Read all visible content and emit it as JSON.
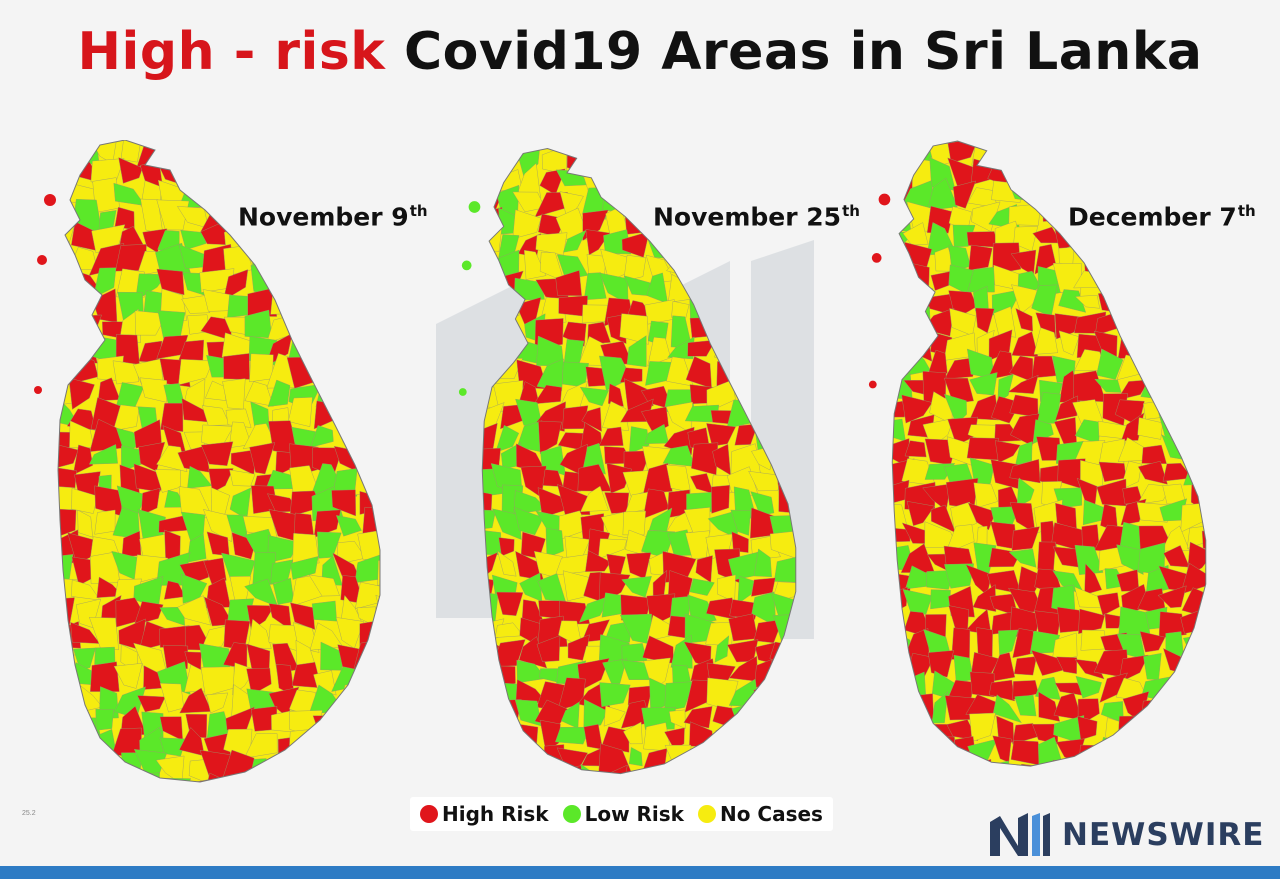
{
  "title": {
    "highlight": "High - risk",
    "rest": "Covid19 Areas in Sri Lanka"
  },
  "maps": [
    {
      "id": "nov9",
      "date": "November 9",
      "suffix": "th"
    },
    {
      "id": "nov25",
      "date": "November 25",
      "suffix": "th"
    },
    {
      "id": "dec7",
      "date": "December 7",
      "suffix": "th"
    }
  ],
  "legend": [
    {
      "label": "High Risk",
      "color": "#e0151b"
    },
    {
      "label": "Low Risk",
      "color": "#5be829"
    },
    {
      "label": "No Cases",
      "color": "#f6ec10"
    }
  ],
  "brand": {
    "name": "NEWSWIRE",
    "logo_icon": "newswire-logo-icon"
  },
  "footnote": "25.2",
  "colors": {
    "high": "#e0151b",
    "low": "#5be829",
    "none": "#f6ec10",
    "brand": "#2b3e5f",
    "bar": "#2d7bc4"
  },
  "risk_mix": {
    "nov9": {
      "high": 0.38,
      "low": 0.24,
      "none": 0.38
    },
    "nov25": {
      "high": 0.4,
      "low": 0.3,
      "none": 0.3
    },
    "dec7": {
      "high": 0.52,
      "low": 0.28,
      "none": 0.2
    }
  }
}
